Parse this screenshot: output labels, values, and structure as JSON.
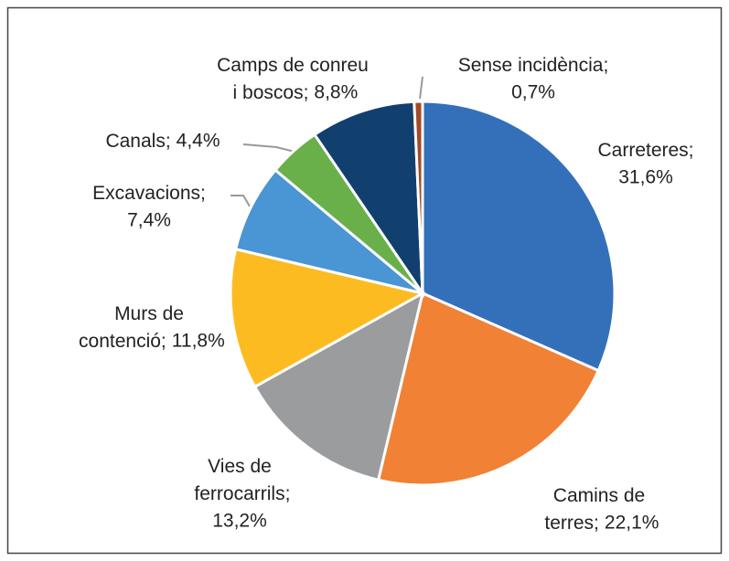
{
  "chart_data": {
    "type": "pie",
    "categories": [
      "Carreteres;",
      "Camins de terres;",
      "Vies de ferrocarrils;",
      "Murs de contenció;",
      "Excavacions;",
      "Canals;",
      "Camps de conreu i boscos;",
      "Sense incidència;"
    ],
    "values": [
      31.6,
      22.1,
      13.2,
      11.8,
      7.4,
      4.4,
      8.8,
      0.7
    ],
    "value_labels": [
      "31,6%",
      "22,1%",
      "13,2%",
      "11,8%",
      "7,4%",
      "4,4%",
      "8,8%",
      "0,7%"
    ],
    "colors": [
      "#3470ba",
      "#f08135",
      "#9a9c9d",
      "#fcbc21",
      "#4a95d3",
      "#69b04b",
      "#11406f",
      "#a34a26"
    ]
  }
}
